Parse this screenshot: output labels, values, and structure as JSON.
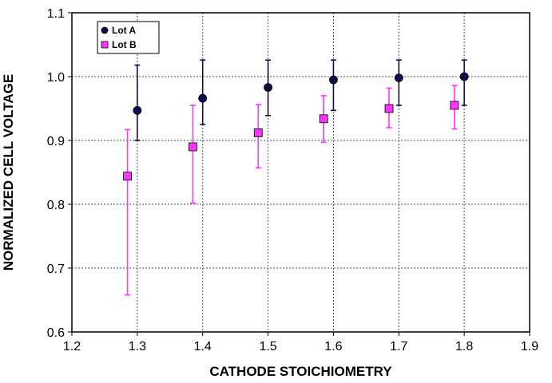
{
  "chart_data": {
    "type": "scatter",
    "title": "",
    "xlabel": "CATHODE STOICHIOMETRY",
    "ylabel": "NORMALIZED CELL VOLTAGE",
    "xlim": [
      1.2,
      1.9
    ],
    "ylim": [
      0.6,
      1.1
    ],
    "x_ticks": [
      1.2,
      1.3,
      1.4,
      1.5,
      1.6,
      1.7,
      1.8,
      1.9
    ],
    "x_tick_labels": [
      "1.2",
      "1.3",
      "1.4",
      "1.5",
      "1.6",
      "1.7",
      "1.8",
      "1.9"
    ],
    "y_ticks": [
      0.6,
      0.7,
      0.8,
      0.9,
      1.0,
      1.1
    ],
    "y_tick_labels": [
      "0.6",
      "0.7",
      "0.8",
      "0.9",
      "1.0",
      "1.1"
    ],
    "grid": true,
    "legend_position": "top-left",
    "series": [
      {
        "name": "Lot A",
        "marker": "circle",
        "color": "#0d0d4d",
        "x": [
          1.3,
          1.4,
          1.5,
          1.6,
          1.7,
          1.8
        ],
        "y": [
          0.947,
          0.966,
          0.983,
          0.995,
          0.998,
          1.0
        ],
        "y_err_low": [
          0.9,
          0.925,
          0.939,
          0.947,
          0.955,
          0.955
        ],
        "y_err_high": [
          1.018,
          1.026,
          1.026,
          1.026,
          1.026,
          1.026
        ]
      },
      {
        "name": "Lot B",
        "marker": "square",
        "color": "#ff33ff",
        "x": [
          1.285,
          1.385,
          1.485,
          1.585,
          1.685,
          1.785
        ],
        "y": [
          0.844,
          0.89,
          0.912,
          0.934,
          0.95,
          0.955
        ],
        "y_err_low": [
          0.658,
          0.802,
          0.857,
          0.897,
          0.92,
          0.918
        ],
        "y_err_high": [
          0.917,
          0.955,
          0.956,
          0.97,
          0.982,
          0.986
        ]
      }
    ]
  }
}
